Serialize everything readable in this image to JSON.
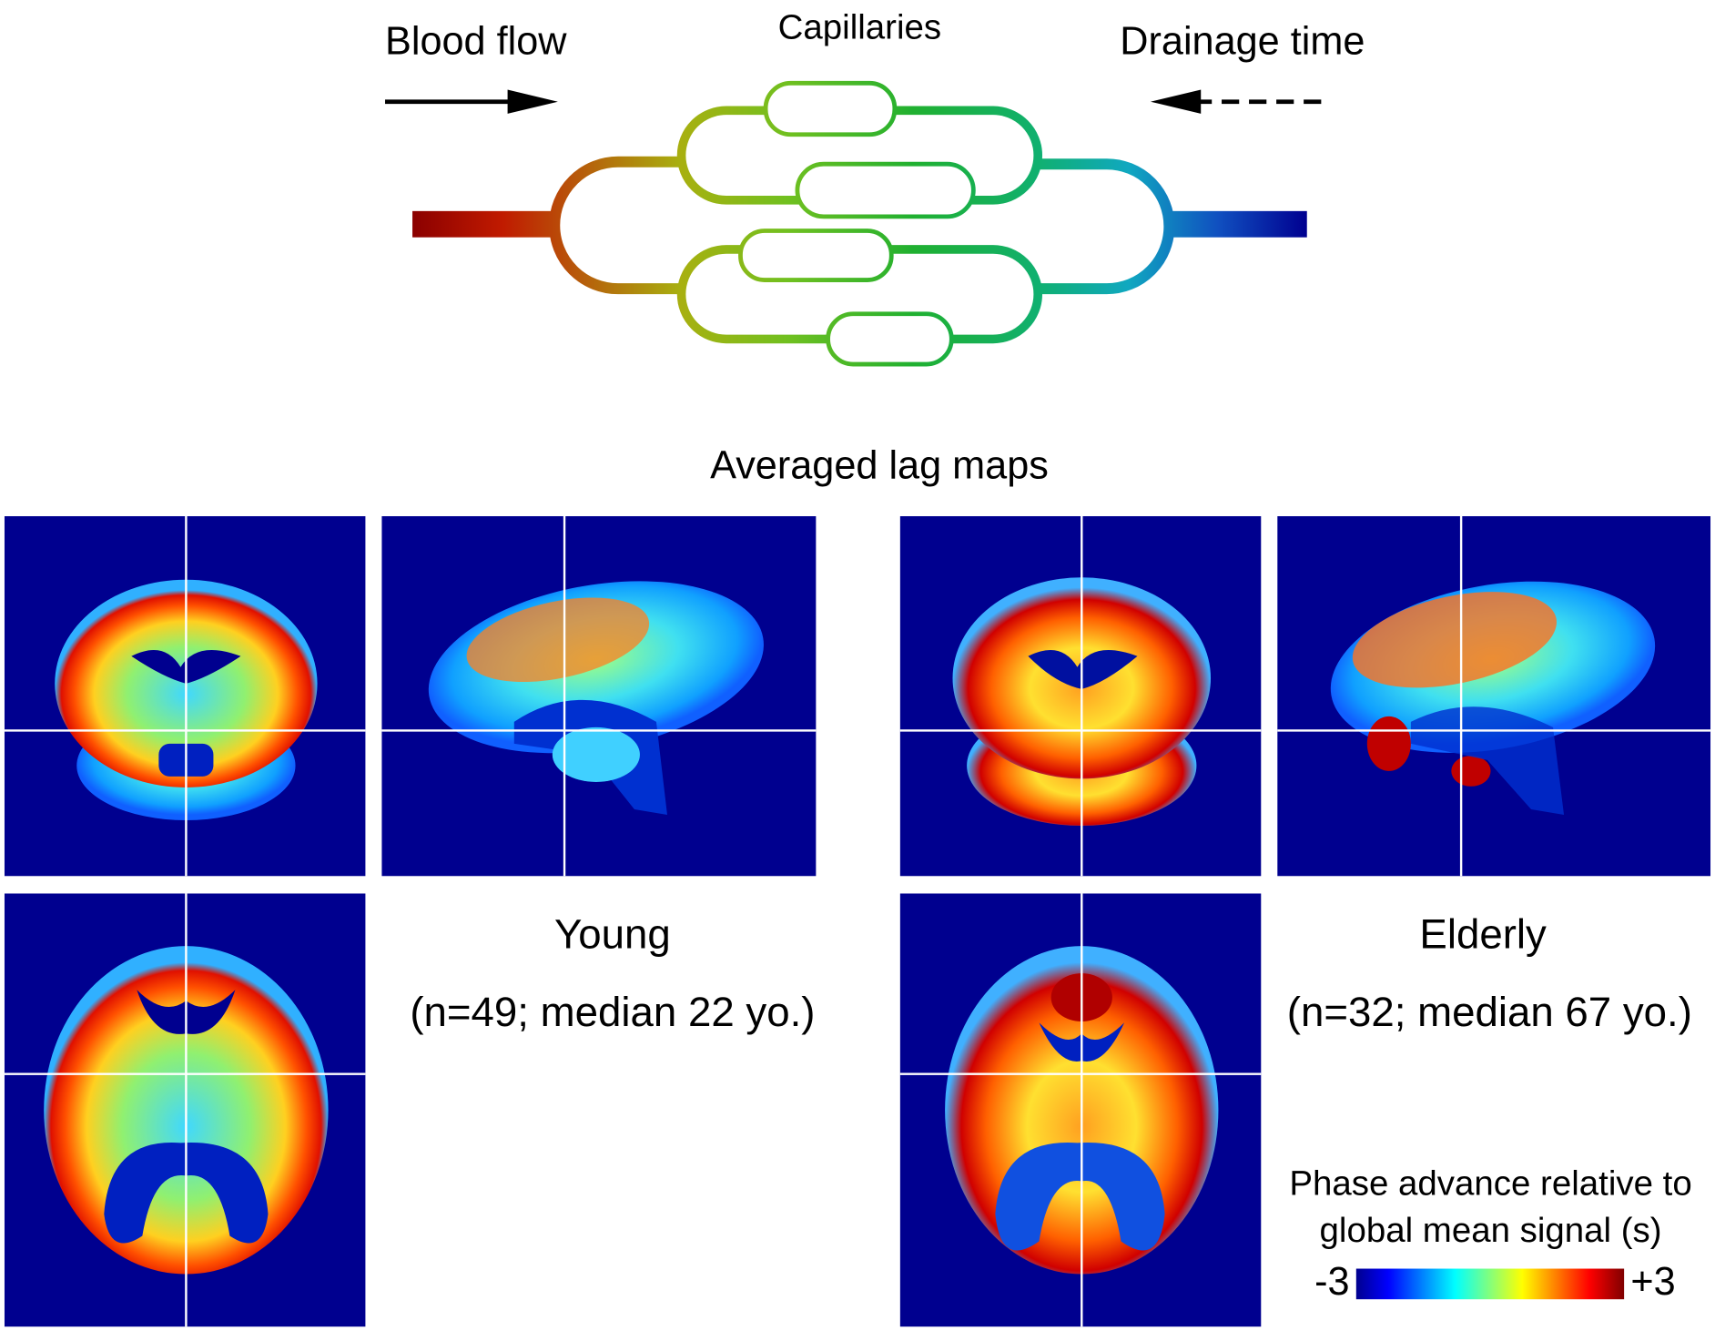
{
  "header": {
    "flow_label": "Blood flow",
    "capillaries_label": "Capillaries",
    "drainage_label": "Drainage time"
  },
  "maps": {
    "title": "Averaged lag maps",
    "groups": [
      {
        "name": "Young",
        "description": "(n=49; median 22 yo.)"
      },
      {
        "name": "Elderly",
        "description": "(n=32; median 67 yo.)"
      }
    ]
  },
  "colorbar": {
    "label": [
      "Phase advance relative to",
      "global mean signal (s)"
    ],
    "min": -3,
    "max": {
      "value": 3,
      "label": "+3"
    }
  }
}
